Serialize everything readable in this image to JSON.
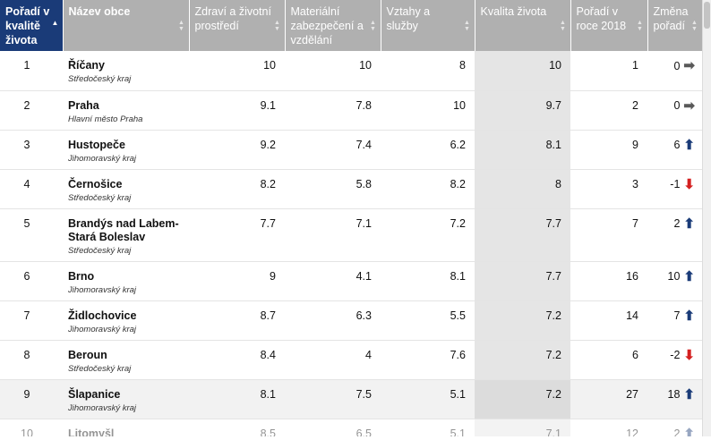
{
  "headers": [
    "Pořadí v kvalitě života",
    "Název obce",
    "Zdraví a životní prostředí",
    "Materiální zabezpečení a vzdělání",
    "Vztahy a služby",
    "Kvalita života",
    "Pořadí v roce 2018",
    "Změna pořadí"
  ],
  "rows": [
    {
      "rank": "1",
      "town": "Říčany",
      "region": "Středočeský kraj",
      "health": "10",
      "material": "10",
      "relations": "8",
      "quality": "10",
      "rank2018": "1",
      "change": "0",
      "dir": "right"
    },
    {
      "rank": "2",
      "town": "Praha",
      "region": "Hlavní město Praha",
      "health": "9.1",
      "material": "7.8",
      "relations": "10",
      "quality": "9.7",
      "rank2018": "2",
      "change": "0",
      "dir": "right"
    },
    {
      "rank": "3",
      "town": "Hustopeče",
      "region": "Jihomoravský kraj",
      "health": "9.2",
      "material": "7.4",
      "relations": "6.2",
      "quality": "8.1",
      "rank2018": "9",
      "change": "6",
      "dir": "up"
    },
    {
      "rank": "4",
      "town": "Černošice",
      "region": "Středočeský kraj",
      "health": "8.2",
      "material": "5.8",
      "relations": "8.2",
      "quality": "8",
      "rank2018": "3",
      "change": "-1",
      "dir": "down"
    },
    {
      "rank": "5",
      "town": "Brandýs nad Labem-Stará Boleslav",
      "region": "Středočeský kraj",
      "health": "7.7",
      "material": "7.1",
      "relations": "7.2",
      "quality": "7.7",
      "rank2018": "7",
      "change": "2",
      "dir": "up"
    },
    {
      "rank": "6",
      "town": "Brno",
      "region": "Jihomoravský kraj",
      "health": "9",
      "material": "4.1",
      "relations": "8.1",
      "quality": "7.7",
      "rank2018": "16",
      "change": "10",
      "dir": "up"
    },
    {
      "rank": "7",
      "town": "Židlochovice",
      "region": "Jihomoravský kraj",
      "health": "8.7",
      "material": "6.3",
      "relations": "5.5",
      "quality": "7.2",
      "rank2018": "14",
      "change": "7",
      "dir": "up"
    },
    {
      "rank": "8",
      "town": "Beroun",
      "region": "Středočeský kraj",
      "health": "8.4",
      "material": "4",
      "relations": "7.6",
      "quality": "7.2",
      "rank2018": "6",
      "change": "-2",
      "dir": "down"
    },
    {
      "rank": "9",
      "town": "Šlapanice",
      "region": "Jihomoravský kraj",
      "health": "8.1",
      "material": "7.5",
      "relations": "5.1",
      "quality": "7.2",
      "rank2018": "27",
      "change": "18",
      "dir": "up"
    },
    {
      "rank": "10",
      "town": "Litomyšl",
      "region": "",
      "health": "8.5",
      "material": "6.5",
      "relations": "5.1",
      "quality": "7.1",
      "rank2018": "12",
      "change": "2",
      "dir": "up"
    }
  ],
  "icons": {
    "sort_active": "sort-ascending-icon",
    "sort_inactive": "sort-both-icon",
    "arrow_right": "arrow-right-icon",
    "arrow_up": "arrow-up-icon",
    "arrow_down": "arrow-down-icon"
  },
  "colors": {
    "header_active": "#1a3b78",
    "header": "#b0b0b0",
    "quality_col": "#e5e5e5",
    "arrow_up": "#1a3b78",
    "arrow_down": "#d42020",
    "arrow_right": "#595959"
  }
}
